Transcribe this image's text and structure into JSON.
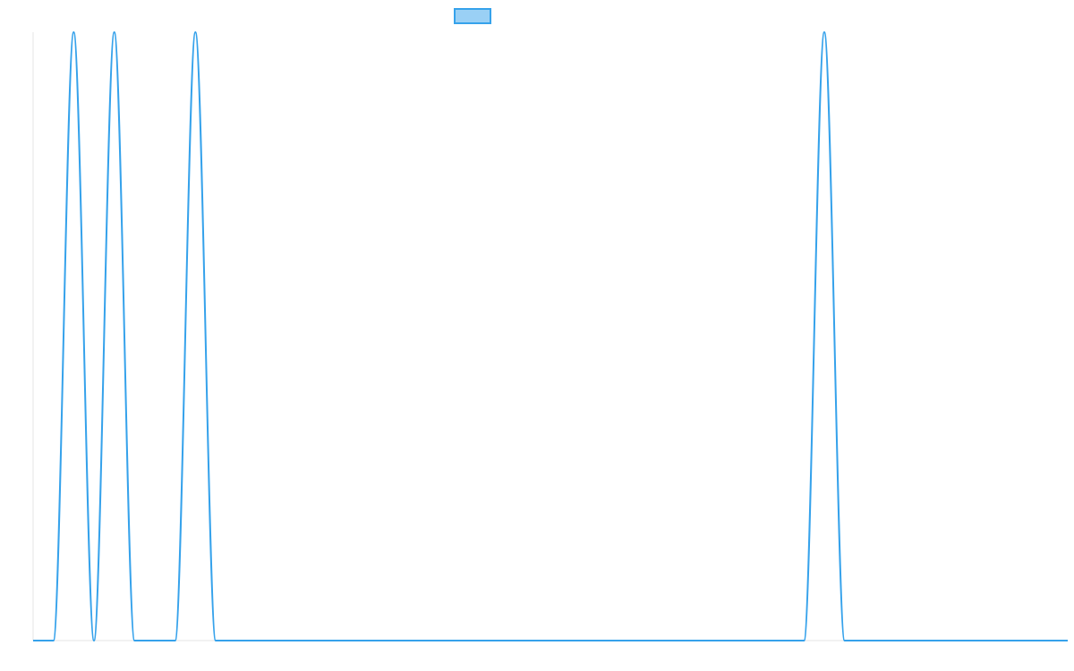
{
  "colors": {
    "series_line": "#36a2eb",
    "series_fill": "#9ad0f5",
    "axis_line": "#e5e5e5",
    "background": "#ffffff"
  },
  "chart_data": {
    "type": "line",
    "title": "",
    "xlabel": "",
    "ylabel": "",
    "grid": false,
    "legend_position": "top",
    "xlim": [
      0,
      51
    ],
    "ylim": [
      0,
      1
    ],
    "series": [
      {
        "name": "",
        "x": [
          0,
          1,
          2,
          3,
          4,
          5,
          6,
          7,
          8,
          9,
          10,
          11,
          12,
          13,
          14,
          15,
          16,
          17,
          18,
          19,
          20,
          21,
          22,
          23,
          24,
          25,
          26,
          27,
          28,
          29,
          30,
          31,
          32,
          33,
          34,
          35,
          36,
          37,
          38,
          39,
          40,
          41,
          42,
          43,
          44,
          45,
          46,
          47,
          48,
          49,
          50,
          51
        ],
        "values": [
          0,
          0,
          1,
          0,
          1,
          0,
          0,
          0,
          1,
          0,
          0,
          0,
          0,
          0,
          0,
          0,
          0,
          0,
          0,
          0,
          0,
          0,
          0,
          0,
          0,
          0,
          0,
          0,
          0,
          0,
          0,
          0,
          0,
          0,
          0,
          0,
          0,
          0,
          0,
          1,
          0,
          0,
          0,
          0,
          0,
          0,
          0,
          0,
          0,
          0,
          0,
          0
        ]
      }
    ]
  }
}
